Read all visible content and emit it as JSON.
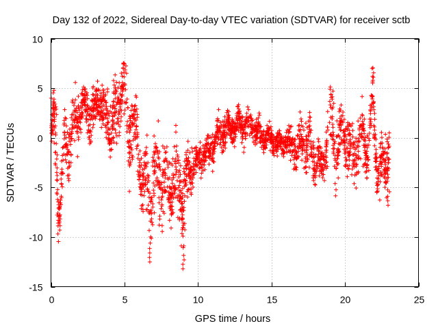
{
  "chart_data": {
    "type": "scatter",
    "title": "Day 132 of 2022, Sidereal Day-to-day VTEC variation (SDTVAR) for receiver sctb",
    "xlabel": "GPS time / hours",
    "ylabel": "SDTVAR / TECUs",
    "xlim": [
      0,
      25
    ],
    "ylim": [
      -15,
      10
    ],
    "xticks": [
      0,
      5,
      10,
      15,
      20,
      25
    ],
    "yticks": [
      -15,
      -10,
      -5,
      0,
      5,
      10
    ],
    "grid": true,
    "marker": "+",
    "colors": {
      "series": "#ff0000",
      "grid": "#a0a0a0",
      "axis": "#000000"
    },
    "series_profile": [
      {
        "x": 0.1,
        "y": 1.0,
        "spread": 4
      },
      {
        "x": 0.4,
        "y": -1.0,
        "spread": 6
      },
      {
        "x": 0.5,
        "y": -8.0,
        "spread": 2
      },
      {
        "x": 0.9,
        "y": -2.0,
        "spread": 4
      },
      {
        "x": 1.5,
        "y": 1.0,
        "spread": 4
      },
      {
        "x": 2.2,
        "y": 3.5,
        "spread": 2
      },
      {
        "x": 2.8,
        "y": 2.0,
        "spread": 3
      },
      {
        "x": 3.3,
        "y": 4.0,
        "spread": 2
      },
      {
        "x": 3.8,
        "y": 1.5,
        "spread": 3
      },
      {
        "x": 4.4,
        "y": 2.0,
        "spread": 4
      },
      {
        "x": 4.9,
        "y": 5.5,
        "spread": 3
      },
      {
        "x": 5.2,
        "y": 0.0,
        "spread": 5
      },
      {
        "x": 5.7,
        "y": 1.5,
        "spread": 4
      },
      {
        "x": 6.2,
        "y": -4.0,
        "spread": 4
      },
      {
        "x": 6.8,
        "y": -6.0,
        "spread": 5
      },
      {
        "x": 7.3,
        "y": -3.0,
        "spread": 5
      },
      {
        "x": 7.9,
        "y": -6.0,
        "spread": 5
      },
      {
        "x": 8.4,
        "y": -4.0,
        "spread": 4
      },
      {
        "x": 9.0,
        "y": -6.0,
        "spread": 5
      },
      {
        "x": 9.5,
        "y": -3.0,
        "spread": 3
      },
      {
        "x": 10.0,
        "y": -2.5,
        "spread": 2
      },
      {
        "x": 10.8,
        "y": -1.0,
        "spread": 2
      },
      {
        "x": 11.5,
        "y": 0.5,
        "spread": 2
      },
      {
        "x": 12.3,
        "y": 1.0,
        "spread": 2
      },
      {
        "x": 13.0,
        "y": 1.5,
        "spread": 2
      },
      {
        "x": 13.8,
        "y": 1.0,
        "spread": 2
      },
      {
        "x": 14.5,
        "y": 0.0,
        "spread": 1.5
      },
      {
        "x": 15.3,
        "y": -0.5,
        "spread": 1.5
      },
      {
        "x": 16.0,
        "y": -0.5,
        "spread": 1.5
      },
      {
        "x": 16.8,
        "y": -1.5,
        "spread": 3
      },
      {
        "x": 17.3,
        "y": 0.0,
        "spread": 4
      },
      {
        "x": 17.9,
        "y": -2.0,
        "spread": 3
      },
      {
        "x": 18.5,
        "y": -3.0,
        "spread": 2
      },
      {
        "x": 19.0,
        "y": 2.0,
        "spread": 4
      },
      {
        "x": 19.4,
        "y": -1.0,
        "spread": 4
      },
      {
        "x": 19.9,
        "y": 0.5,
        "spread": 3
      },
      {
        "x": 20.5,
        "y": -2.0,
        "spread": 4
      },
      {
        "x": 21.0,
        "y": 0.0,
        "spread": 4
      },
      {
        "x": 21.6,
        "y": -1.5,
        "spread": 3
      },
      {
        "x": 21.9,
        "y": 4.0,
        "spread": 3
      },
      {
        "x": 22.2,
        "y": -4.0,
        "spread": 3
      },
      {
        "x": 22.8,
        "y": -2.0,
        "spread": 3
      }
    ],
    "extremes": [
      {
        "x": 4.95,
        "y": 7.5
      },
      {
        "x": 21.9,
        "y": 7.0
      },
      {
        "x": 6.7,
        "y": -12.5
      },
      {
        "x": 9.0,
        "y": -13.2
      },
      {
        "x": 0.55,
        "y": -9.3
      },
      {
        "x": 2.3,
        "y": 4.7
      },
      {
        "x": 22.95,
        "y": 0.5
      },
      {
        "x": 22.95,
        "y": -6.8
      }
    ],
    "x_range": [
      0.0,
      23.0
    ],
    "density_points_per_hour": 110
  }
}
